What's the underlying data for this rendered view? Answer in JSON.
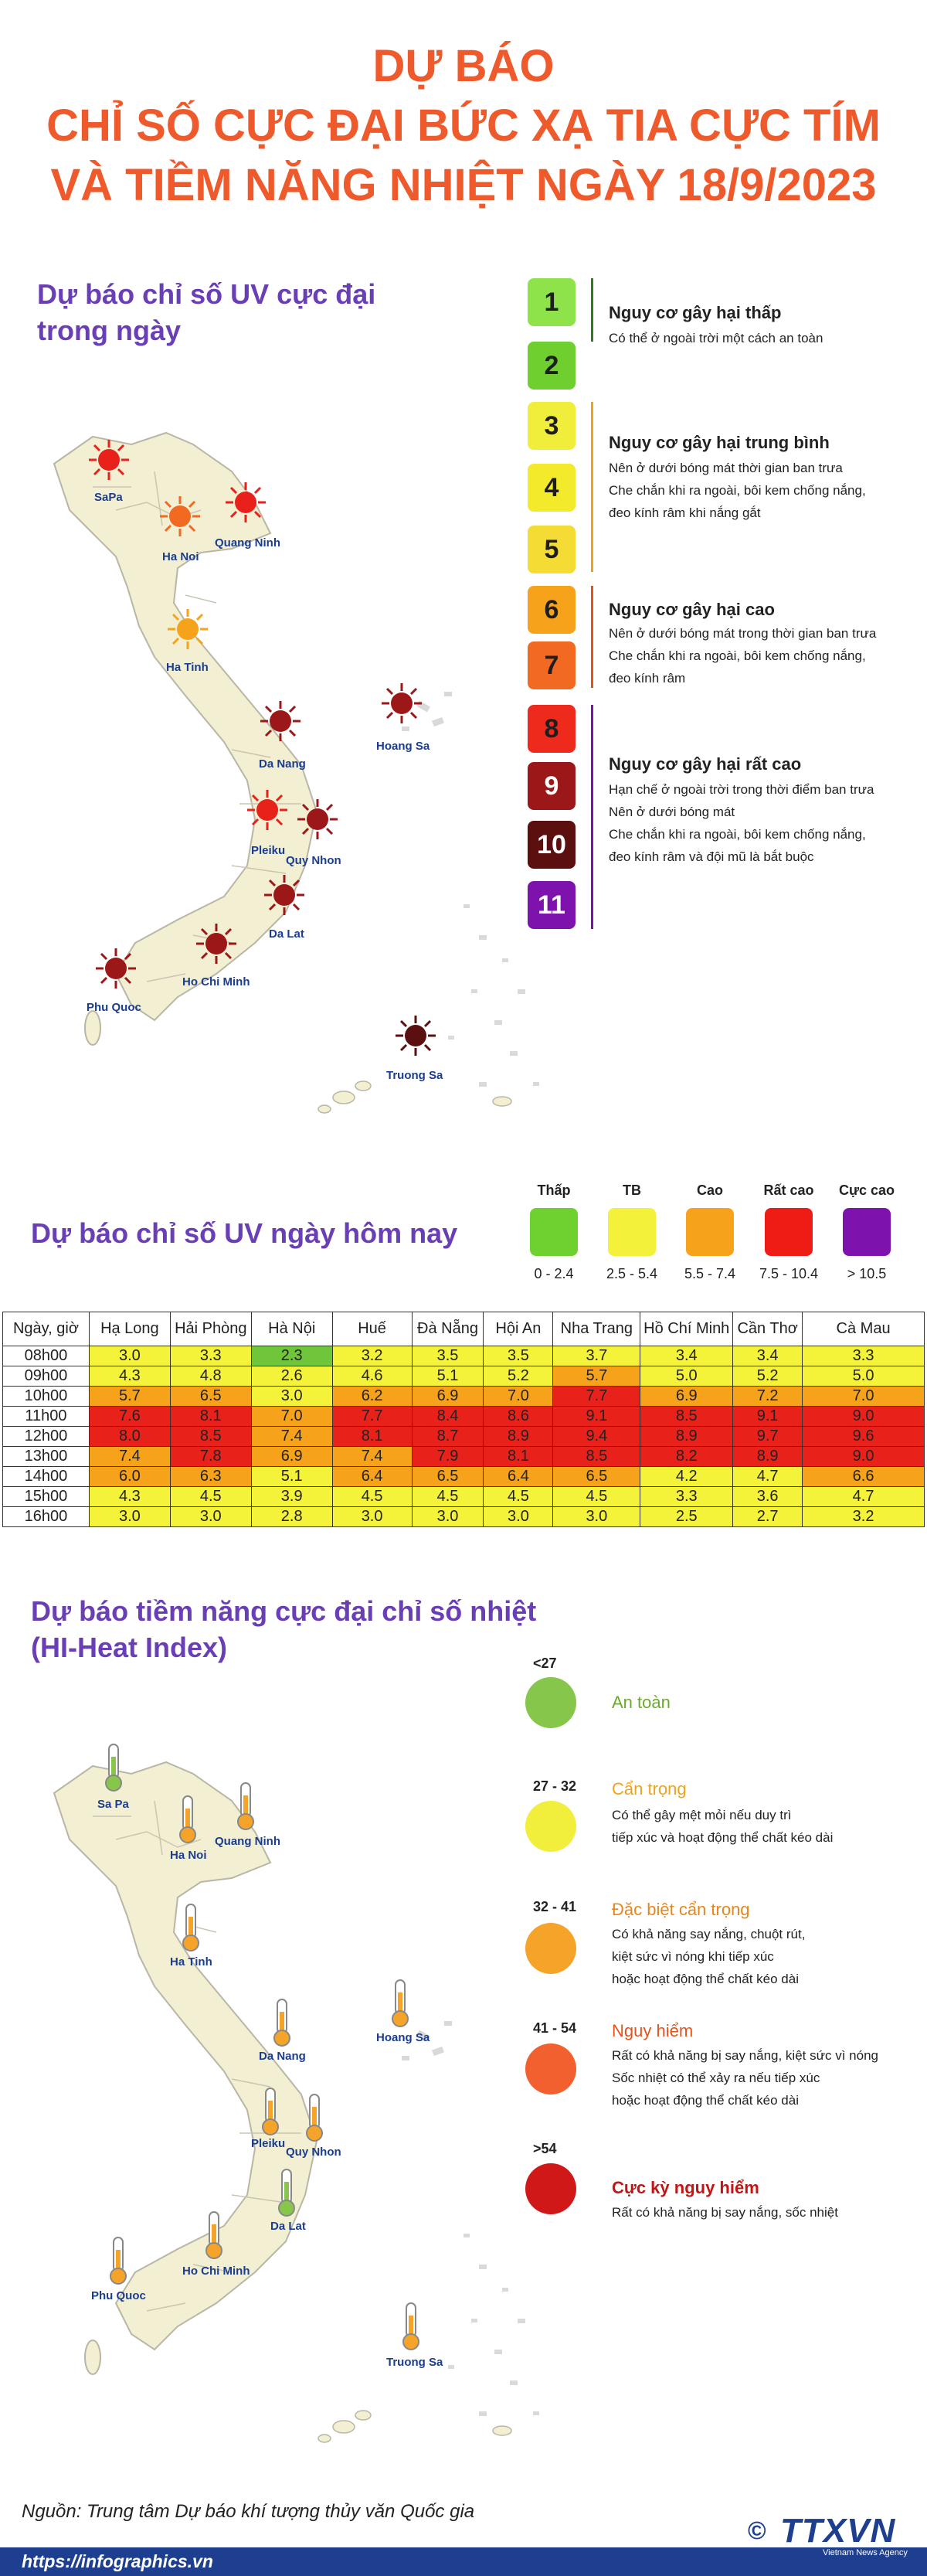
{
  "title": {
    "line1": "DỰ BÁO",
    "line2": "CHỈ SỐ CỰC ĐẠI BỨC XẠ TIA CỰC TÍM",
    "line3": "VÀ TIỀM NĂNG NHIỆT NGÀY 18/9/2023"
  },
  "uv_max": {
    "heading_l1": "Dự báo chỉ số UV cực đại",
    "heading_l2": "trong ngày",
    "cities": {
      "sapa": "SaPa",
      "hanoi": "Ha Noi",
      "quangninh": "Quang Ninh",
      "hatinh": "Ha Tinh",
      "danang": "Da Nang",
      "hoangsa": "Hoang Sa",
      "pleiku": "Pleiku",
      "quynhon": "Quy Nhon",
      "dalat": "Da Lat",
      "hcm": "Ho Chi Minh",
      "phuquoc": "Phu Quoc",
      "truongsa": "Truong Sa"
    },
    "levels": [
      {
        "value": "1",
        "color": "#8ee34a"
      },
      {
        "value": "2",
        "color": "#6fcf2f"
      },
      {
        "value": "3",
        "color": "#f0ee3a"
      },
      {
        "value": "4",
        "color": "#f2ea2a"
      },
      {
        "value": "5",
        "color": "#f4dc35"
      },
      {
        "value": "6",
        "color": "#f7a21b"
      },
      {
        "value": "7",
        "color": "#f26a21"
      },
      {
        "value": "8",
        "color": "#ee2a1c"
      },
      {
        "value": "9",
        "color": "#9c1818"
      },
      {
        "value": "10",
        "color": "#5c0f0f"
      },
      {
        "value": "11",
        "color": "#7d12ad"
      }
    ],
    "risks": [
      {
        "title": "Nguy cơ gây hại thấp",
        "color": "#2e7d1e",
        "desc": [
          "Có thể ở ngoài trời một cách an toàn"
        ]
      },
      {
        "title": "Nguy cơ gây hại trung bình",
        "color": "#f0a21b",
        "desc": [
          "Nên ở dưới bóng mát thời gian ban trưa",
          "Che chắn khi ra ngoài, bôi kem chống nắng,",
          "đeo kính râm khi nắng gắt"
        ]
      },
      {
        "title": "Nguy cơ gây hại cao",
        "color": "#e5521c",
        "desc": [
          "Nên ở dưới bóng mát trong thời gian ban trưa",
          "Che chắn khi ra ngoài, bôi kem chống nắng,",
          "đeo kính râm"
        ]
      },
      {
        "title": "Nguy cơ gây hại rất cao",
        "color": "#7d12ad",
        "desc": [
          "Hạn chế ở ngoài trời trong thời điểm ban trưa",
          "Nên ở dưới bóng mát",
          "Che chắn khi ra ngoài, bôi kem chống nắng,",
          "đeo kính râm và đội mũ là bắt buộc"
        ]
      }
    ]
  },
  "uv_today": {
    "heading": "Dự báo chỉ số UV ngày hôm nay",
    "scale": [
      {
        "label": "Thấp",
        "range": "0 - 2.4",
        "color": "#6fd12f"
      },
      {
        "label": "TB",
        "range": "2.5 - 5.4",
        "color": "#f3f13a"
      },
      {
        "label": "Cao",
        "range": "5.5 - 7.4",
        "color": "#f7a21b"
      },
      {
        "label": "Rất cao",
        "range": "7.5 - 10.4",
        "color": "#ee1c14"
      },
      {
        "label": "Cực cao",
        "range": "> 10.5",
        "color": "#7d12ad"
      }
    ],
    "table": {
      "headers": [
        "Ngày, giờ",
        "Hạ Long",
        "Hải Phòng",
        "Hà Nội",
        "Huế",
        "Đà Nẵng",
        "Hội An",
        "Nha Trang",
        "Hồ Chí Minh",
        "Cần Thơ",
        "Cà Mau"
      ],
      "rows": [
        {
          "time": "08h00",
          "values": [
            "3.0",
            "3.3",
            "2.3",
            "3.2",
            "3.5",
            "3.5",
            "3.7",
            "3.4",
            "3.4",
            "3.3"
          ]
        },
        {
          "time": "09h00",
          "values": [
            "4.3",
            "4.8",
            "2.6",
            "4.6",
            "5.1",
            "5.2",
            "5.7",
            "5.0",
            "5.2",
            "5.0"
          ]
        },
        {
          "time": "10h00",
          "values": [
            "5.7",
            "6.5",
            "3.0",
            "6.2",
            "6.9",
            "7.0",
            "7.7",
            "6.9",
            "7.2",
            "7.0"
          ]
        },
        {
          "time": "11h00",
          "values": [
            "7.6",
            "8.1",
            "7.0",
            "7.7",
            "8.4",
            "8.6",
            "9.1",
            "8.5",
            "9.1",
            "9.0"
          ]
        },
        {
          "time": "12h00",
          "values": [
            "8.0",
            "8.5",
            "7.4",
            "8.1",
            "8.7",
            "8.9",
            "9.4",
            "8.9",
            "9.7",
            "9.6"
          ]
        },
        {
          "time": "13h00",
          "values": [
            "7.4",
            "7.8",
            "6.9",
            "7.4",
            "7.9",
            "8.1",
            "8.5",
            "8.2",
            "8.9",
            "9.0"
          ]
        },
        {
          "time": "14h00",
          "values": [
            "6.0",
            "6.3",
            "5.1",
            "6.4",
            "6.5",
            "6.4",
            "6.5",
            "4.2",
            "4.7",
            "6.6"
          ]
        },
        {
          "time": "15h00",
          "values": [
            "4.3",
            "4.5",
            "3.9",
            "4.5",
            "4.5",
            "4.5",
            "4.5",
            "3.3",
            "3.6",
            "4.7"
          ]
        },
        {
          "time": "16h00",
          "values": [
            "3.0",
            "3.0",
            "2.8",
            "3.0",
            "3.0",
            "3.0",
            "3.0",
            "2.5",
            "2.7",
            "3.2"
          ]
        }
      ]
    }
  },
  "heat": {
    "heading_l1": "Dự báo tiềm năng cực đại chỉ số nhiệt",
    "heading_l2": "(HI-Heat Index)",
    "cities": {
      "sapa": "Sa Pa",
      "hanoi": "Ha Noi",
      "quangninh": "Quang Ninh",
      "hatinh": "Ha Tinh",
      "danang": "Da Nang",
      "hoangsa": "Hoang Sa",
      "pleiku": "Pleiku",
      "quynhon": "Quy Nhon",
      "dalat": "Da Lat",
      "hcm": "Ho Chi Minh",
      "phuquoc": "Phu Quoc",
      "truongsa": "Truong Sa"
    },
    "levels": [
      {
        "range": "<27",
        "title": "An toàn",
        "color": "#86c64a",
        "title_color": "#6aaa2a",
        "desc": []
      },
      {
        "range": "27 - 32",
        "title": "Cẩn trọng",
        "color": "#f1ee3c",
        "title_color": "#f0a21b",
        "desc": [
          "Có thể gây mệt mỏi nếu duy trì",
          "tiếp xúc và hoạt động thể chất kéo dài"
        ]
      },
      {
        "range": "32 - 41",
        "title": "Đặc biệt cẩn trọng",
        "color": "#f6a32a",
        "title_color": "#e5871c",
        "desc": [
          "Có khả năng say nắng, chuột rút,",
          "kiệt sức vì nóng khi tiếp xúc",
          "hoặc hoạt động thể chất kéo dài"
        ]
      },
      {
        "range": "41 - 54",
        "title": "Nguy hiểm",
        "color": "#f2602f",
        "title_color": "#e5521c",
        "desc": [
          "Rất có khả năng bị say nắng, kiệt sức vì nóng",
          "Sốc nhiệt có thể xảy ra nếu tiếp xúc",
          "hoặc hoạt động thể chất kéo dài"
        ]
      },
      {
        "range": ">54",
        "title": "Cực kỳ nguy hiểm",
        "color": "#d01818",
        "title_color": "#c21515",
        "desc": [
          "Rất có khả năng bị say nắng, sốc nhiệt"
        ]
      }
    ]
  },
  "footer": {
    "source": "Nguồn: Trung tâm Dự báo khí tượng thủy văn Quốc gia",
    "url": "https://infographics.vn",
    "copyright": "©",
    "logo": "TTXVN",
    "logo_sub": "Vietnam News Agency"
  },
  "colors": {
    "title": "#ef5a2c",
    "heading": "#6a3fb5",
    "map_fill": "#f3efd2",
    "map_stroke": "#b9b6a6",
    "cell_green": "#6fc63a",
    "cell_yellow": "#f5f23a",
    "cell_orange": "#f7a21b",
    "cell_red": "#e8221a"
  }
}
